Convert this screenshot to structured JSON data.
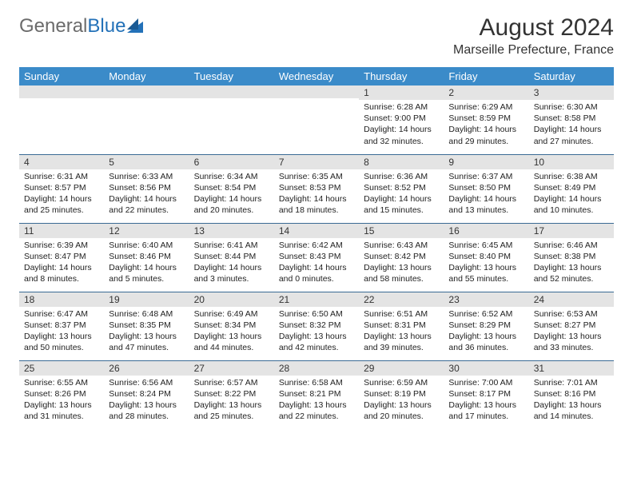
{
  "logo": {
    "text_gray": "General",
    "text_blue": "Blue"
  },
  "header": {
    "month_title": "August 2024",
    "location": "Marseille Prefecture, France"
  },
  "colors": {
    "header_bg": "#3b8bc9",
    "header_text": "#ffffff",
    "daynum_bg": "#e4e4e4",
    "border": "#3a6a94",
    "logo_gray": "#6b6b6b",
    "logo_blue": "#2371b8"
  },
  "day_names": [
    "Sunday",
    "Monday",
    "Tuesday",
    "Wednesday",
    "Thursday",
    "Friday",
    "Saturday"
  ],
  "weeks": [
    [
      {
        "n": "",
        "sr": "",
        "ss": "",
        "dl": ""
      },
      {
        "n": "",
        "sr": "",
        "ss": "",
        "dl": ""
      },
      {
        "n": "",
        "sr": "",
        "ss": "",
        "dl": ""
      },
      {
        "n": "",
        "sr": "",
        "ss": "",
        "dl": ""
      },
      {
        "n": "1",
        "sr": "Sunrise: 6:28 AM",
        "ss": "Sunset: 9:00 PM",
        "dl": "Daylight: 14 hours and 32 minutes."
      },
      {
        "n": "2",
        "sr": "Sunrise: 6:29 AM",
        "ss": "Sunset: 8:59 PM",
        "dl": "Daylight: 14 hours and 29 minutes."
      },
      {
        "n": "3",
        "sr": "Sunrise: 6:30 AM",
        "ss": "Sunset: 8:58 PM",
        "dl": "Daylight: 14 hours and 27 minutes."
      }
    ],
    [
      {
        "n": "4",
        "sr": "Sunrise: 6:31 AM",
        "ss": "Sunset: 8:57 PM",
        "dl": "Daylight: 14 hours and 25 minutes."
      },
      {
        "n": "5",
        "sr": "Sunrise: 6:33 AM",
        "ss": "Sunset: 8:56 PM",
        "dl": "Daylight: 14 hours and 22 minutes."
      },
      {
        "n": "6",
        "sr": "Sunrise: 6:34 AM",
        "ss": "Sunset: 8:54 PM",
        "dl": "Daylight: 14 hours and 20 minutes."
      },
      {
        "n": "7",
        "sr": "Sunrise: 6:35 AM",
        "ss": "Sunset: 8:53 PM",
        "dl": "Daylight: 14 hours and 18 minutes."
      },
      {
        "n": "8",
        "sr": "Sunrise: 6:36 AM",
        "ss": "Sunset: 8:52 PM",
        "dl": "Daylight: 14 hours and 15 minutes."
      },
      {
        "n": "9",
        "sr": "Sunrise: 6:37 AM",
        "ss": "Sunset: 8:50 PM",
        "dl": "Daylight: 14 hours and 13 minutes."
      },
      {
        "n": "10",
        "sr": "Sunrise: 6:38 AM",
        "ss": "Sunset: 8:49 PM",
        "dl": "Daylight: 14 hours and 10 minutes."
      }
    ],
    [
      {
        "n": "11",
        "sr": "Sunrise: 6:39 AM",
        "ss": "Sunset: 8:47 PM",
        "dl": "Daylight: 14 hours and 8 minutes."
      },
      {
        "n": "12",
        "sr": "Sunrise: 6:40 AM",
        "ss": "Sunset: 8:46 PM",
        "dl": "Daylight: 14 hours and 5 minutes."
      },
      {
        "n": "13",
        "sr": "Sunrise: 6:41 AM",
        "ss": "Sunset: 8:44 PM",
        "dl": "Daylight: 14 hours and 3 minutes."
      },
      {
        "n": "14",
        "sr": "Sunrise: 6:42 AM",
        "ss": "Sunset: 8:43 PM",
        "dl": "Daylight: 14 hours and 0 minutes."
      },
      {
        "n": "15",
        "sr": "Sunrise: 6:43 AM",
        "ss": "Sunset: 8:42 PM",
        "dl": "Daylight: 13 hours and 58 minutes."
      },
      {
        "n": "16",
        "sr": "Sunrise: 6:45 AM",
        "ss": "Sunset: 8:40 PM",
        "dl": "Daylight: 13 hours and 55 minutes."
      },
      {
        "n": "17",
        "sr": "Sunrise: 6:46 AM",
        "ss": "Sunset: 8:38 PM",
        "dl": "Daylight: 13 hours and 52 minutes."
      }
    ],
    [
      {
        "n": "18",
        "sr": "Sunrise: 6:47 AM",
        "ss": "Sunset: 8:37 PM",
        "dl": "Daylight: 13 hours and 50 minutes."
      },
      {
        "n": "19",
        "sr": "Sunrise: 6:48 AM",
        "ss": "Sunset: 8:35 PM",
        "dl": "Daylight: 13 hours and 47 minutes."
      },
      {
        "n": "20",
        "sr": "Sunrise: 6:49 AM",
        "ss": "Sunset: 8:34 PM",
        "dl": "Daylight: 13 hours and 44 minutes."
      },
      {
        "n": "21",
        "sr": "Sunrise: 6:50 AM",
        "ss": "Sunset: 8:32 PM",
        "dl": "Daylight: 13 hours and 42 minutes."
      },
      {
        "n": "22",
        "sr": "Sunrise: 6:51 AM",
        "ss": "Sunset: 8:31 PM",
        "dl": "Daylight: 13 hours and 39 minutes."
      },
      {
        "n": "23",
        "sr": "Sunrise: 6:52 AM",
        "ss": "Sunset: 8:29 PM",
        "dl": "Daylight: 13 hours and 36 minutes."
      },
      {
        "n": "24",
        "sr": "Sunrise: 6:53 AM",
        "ss": "Sunset: 8:27 PM",
        "dl": "Daylight: 13 hours and 33 minutes."
      }
    ],
    [
      {
        "n": "25",
        "sr": "Sunrise: 6:55 AM",
        "ss": "Sunset: 8:26 PM",
        "dl": "Daylight: 13 hours and 31 minutes."
      },
      {
        "n": "26",
        "sr": "Sunrise: 6:56 AM",
        "ss": "Sunset: 8:24 PM",
        "dl": "Daylight: 13 hours and 28 minutes."
      },
      {
        "n": "27",
        "sr": "Sunrise: 6:57 AM",
        "ss": "Sunset: 8:22 PM",
        "dl": "Daylight: 13 hours and 25 minutes."
      },
      {
        "n": "28",
        "sr": "Sunrise: 6:58 AM",
        "ss": "Sunset: 8:21 PM",
        "dl": "Daylight: 13 hours and 22 minutes."
      },
      {
        "n": "29",
        "sr": "Sunrise: 6:59 AM",
        "ss": "Sunset: 8:19 PM",
        "dl": "Daylight: 13 hours and 20 minutes."
      },
      {
        "n": "30",
        "sr": "Sunrise: 7:00 AM",
        "ss": "Sunset: 8:17 PM",
        "dl": "Daylight: 13 hours and 17 minutes."
      },
      {
        "n": "31",
        "sr": "Sunrise: 7:01 AM",
        "ss": "Sunset: 8:16 PM",
        "dl": "Daylight: 13 hours and 14 minutes."
      }
    ]
  ]
}
